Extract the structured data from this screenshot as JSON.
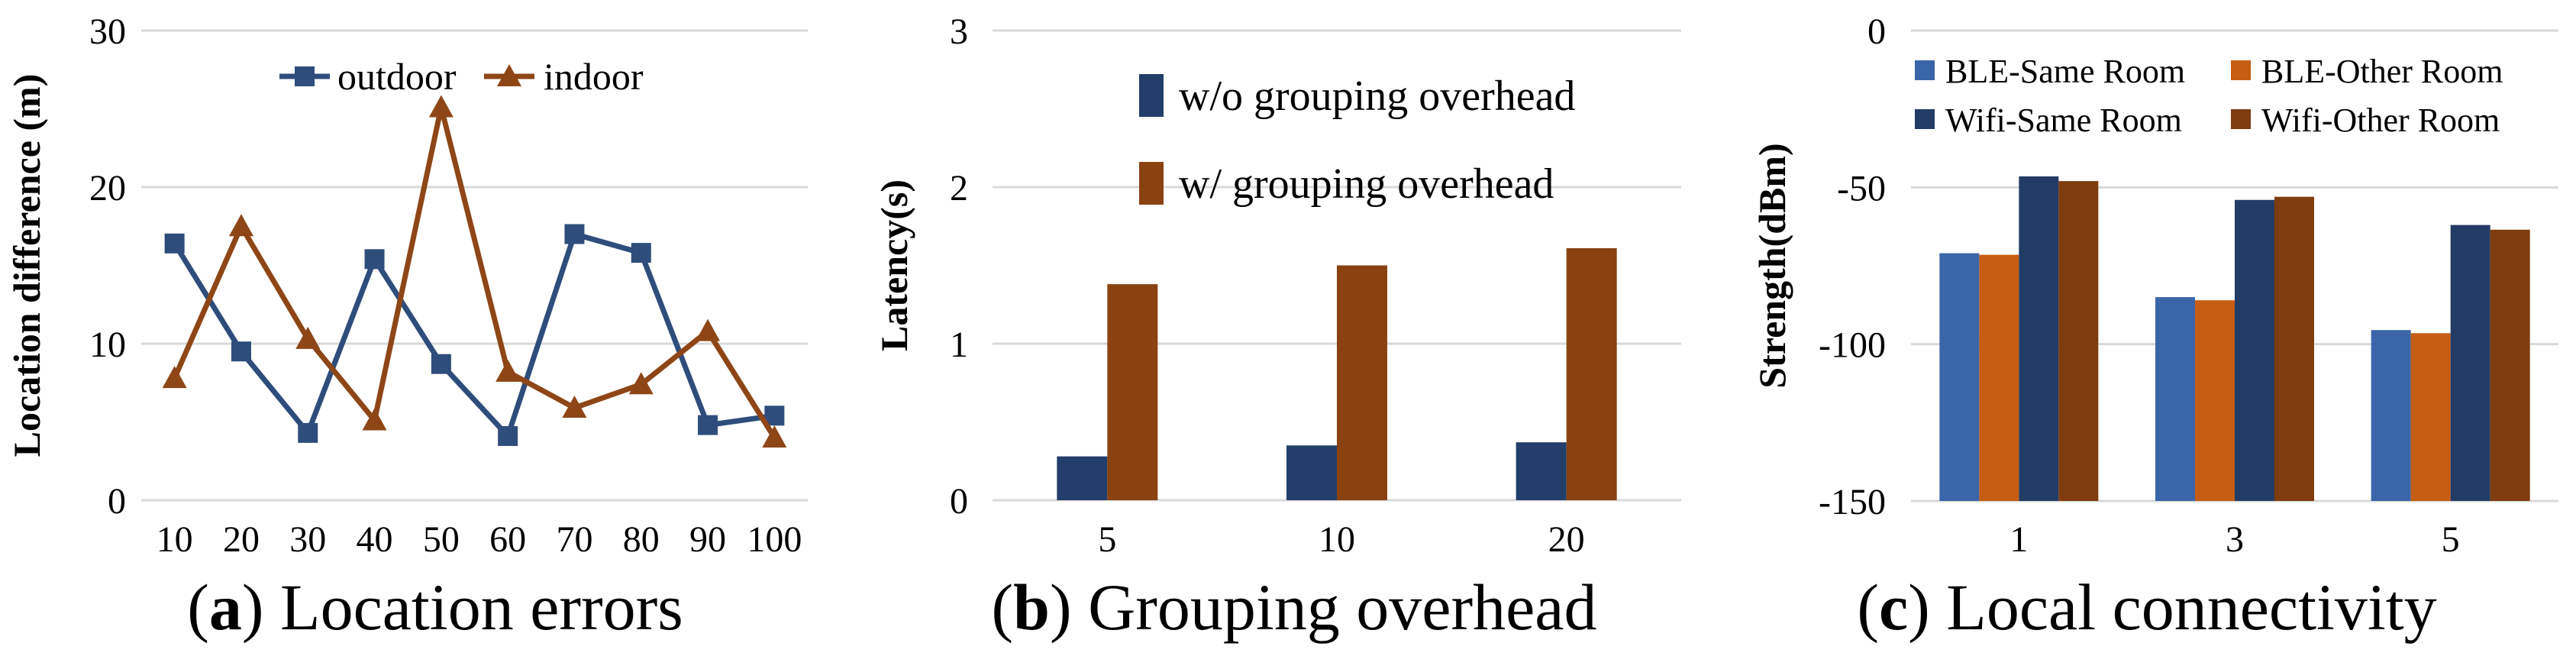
{
  "figure": {
    "background": "#ffffff",
    "grid_color": "#D9D9D9",
    "text_color": "#000000"
  },
  "chart_data": [
    {
      "id": "a",
      "type": "line",
      "caption_letter": "a",
      "caption_text": "Location errors",
      "xlabel": "",
      "ylabel": "Location difference (m)",
      "ylim": [
        0,
        30
      ],
      "yticks": [
        0,
        10,
        20,
        30
      ],
      "grid": "horizontal",
      "legend_position": "top-inside-horizontal",
      "categories": [
        "10",
        "20",
        "30",
        "40",
        "50",
        "60",
        "70",
        "80",
        "90",
        "100"
      ],
      "series": [
        {
          "name": "outdoor",
          "color": "#2E4D7B",
          "marker": "square",
          "values": [
            16.4,
            9.5,
            4.3,
            15.4,
            8.7,
            4.1,
            17.0,
            15.8,
            4.8,
            5.4
          ]
        },
        {
          "name": "indoor",
          "color": "#8E4617",
          "marker": "triangle",
          "values": [
            7.8,
            17.5,
            10.3,
            5.1,
            25.1,
            8.2,
            5.9,
            7.4,
            10.8,
            4.0
          ]
        }
      ]
    },
    {
      "id": "b",
      "type": "bar",
      "caption_letter": "b",
      "caption_text": "Grouping overhead",
      "xlabel": "",
      "ylabel": "Latency(s)",
      "ylim": [
        0,
        3
      ],
      "yticks": [
        0,
        1,
        2,
        3
      ],
      "grid": "horizontal",
      "legend_position": "top-inside-stacked",
      "categories": [
        "5",
        "10",
        "20"
      ],
      "series": [
        {
          "name": "w/o grouping overhead",
          "color": "#233E6B",
          "values": [
            0.28,
            0.35,
            0.37
          ]
        },
        {
          "name": "w/ grouping overhead",
          "color": "#8A4211",
          "values": [
            1.38,
            1.5,
            1.61
          ]
        }
      ]
    },
    {
      "id": "c",
      "type": "bar",
      "caption_letter": "c",
      "caption_text": "Local connectivity",
      "xlabel": "",
      "ylabel": "Strength(dBm)",
      "ylim": [
        -150,
        0
      ],
      "yticks": [
        0,
        -50,
        -100,
        -150
      ],
      "grid": "horizontal",
      "legend_position": "top-inside-2col",
      "categories": [
        "1",
        "3",
        "5"
      ],
      "series": [
        {
          "name": "BLE-Same Room",
          "color": "#3A65A8",
          "values": [
            -71,
            -85,
            -95.5
          ]
        },
        {
          "name": "BLE-Other Room",
          "color": "#C65D13",
          "values": [
            -71.5,
            -86,
            -96.5
          ]
        },
        {
          "name": "Wifi-Same Room",
          "color": "#233C66",
          "values": [
            -46.5,
            -54,
            -62
          ]
        },
        {
          "name": "Wifi-Other Room",
          "color": "#7F3C0E",
          "values": [
            -48,
            -53,
            -63.5
          ]
        }
      ]
    }
  ]
}
